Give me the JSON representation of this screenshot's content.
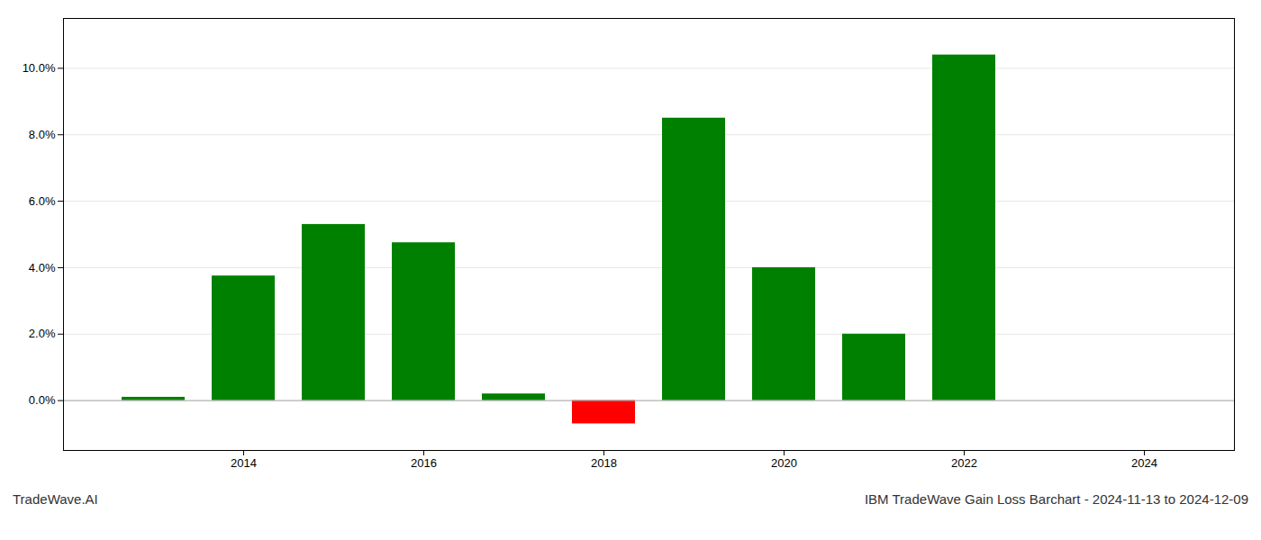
{
  "chart_data": {
    "type": "bar",
    "title": "IBM TradeWave Gain Loss Barchart - 2024-11-13 to 2024-12-09",
    "annotations": [
      "TradeWave.AI"
    ],
    "x": [
      2013,
      2014,
      2015,
      2016,
      2017,
      2018,
      2019,
      2020,
      2021,
      2022,
      2023
    ],
    "values": [
      0.001,
      0.0375,
      0.053,
      0.0475,
      0.002,
      -0.007,
      0.085,
      0.04,
      0.02,
      0.104,
      0.0
    ],
    "colors": [
      "#008000",
      "#008000",
      "#008000",
      "#008000",
      "#008000",
      "#ff0000",
      "#008000",
      "#008000",
      "#008000",
      "#008000",
      "#008000"
    ],
    "xlim": [
      2012.0,
      2025.0
    ],
    "xticks": [
      2014,
      2016,
      2018,
      2020,
      2022,
      2024
    ],
    "ylim": [
      -0.015,
      0.115
    ],
    "yticks": [
      {
        "value": 0.0,
        "label": "0.0%"
      },
      {
        "value": 0.02,
        "label": "2.0%"
      },
      {
        "value": 0.04,
        "label": "4.0%"
      },
      {
        "value": 0.06,
        "label": "6.0%"
      },
      {
        "value": 0.08,
        "label": "8.0%"
      },
      {
        "value": 0.1,
        "label": "10.0%"
      }
    ],
    "grid": true
  }
}
